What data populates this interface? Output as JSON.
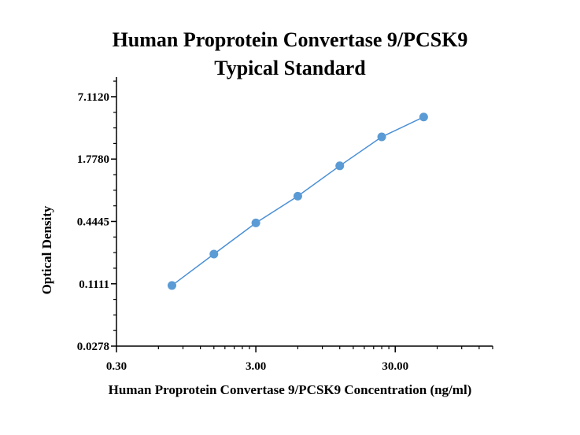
{
  "chart_data": {
    "type": "line",
    "title": "Human Proprotein Convertase 9/PCSK9",
    "subtitle": "Typical Standard",
    "xlabel": "Human Proprotein Convertase 9/PCSK9 Concentration (ng/ml)",
    "ylabel": "Optical Density",
    "x_scale": "log",
    "y_scale": "log",
    "xlim": [
      0.3,
      150
    ],
    "ylim": [
      0.0278,
      11
    ],
    "x_ticks": [
      "0.30",
      "3.00",
      "30.00"
    ],
    "y_ticks": [
      "0.0278",
      "0.1111",
      "0.4445",
      "1.7780",
      "7.1120"
    ],
    "grid": false,
    "series": [
      {
        "x": [
          0.75,
          1.5,
          3.0,
          6.0,
          12.0,
          24.0,
          48.0
        ],
        "y": [
          0.107,
          0.215,
          0.43,
          0.78,
          1.53,
          2.91,
          4.53
        ]
      }
    ],
    "colors": {
      "line": "#4a8fd6",
      "marker": "#5b9bd5",
      "axis": "#000000"
    }
  }
}
